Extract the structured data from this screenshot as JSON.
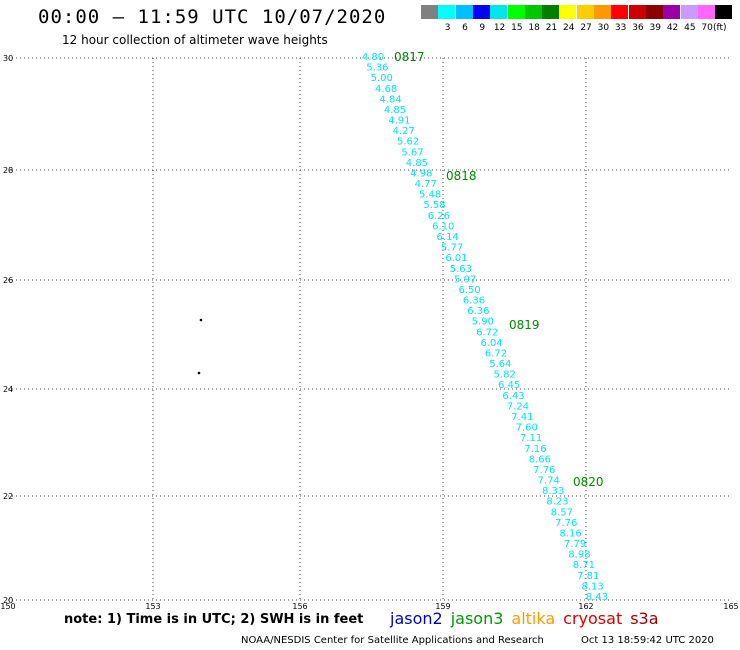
{
  "header": {
    "title": "00:00 – 11:59 UTC 10/07/2020",
    "subtitle": "12 hour collection of altimeter wave heights"
  },
  "scale": {
    "labels": [
      "3",
      "6",
      "9",
      "12",
      "15",
      "18",
      "21",
      "24",
      "27",
      "30",
      "33",
      "36",
      "39",
      "42",
      "45",
      "70"
    ],
    "colors": [
      "#808080",
      "#00ffff",
      "#00bfff",
      "#0000ff",
      "#00e5ee",
      "#00ff00",
      "#00c800",
      "#008000",
      "#ffff00",
      "#ffcc00",
      "#ff9900",
      "#ff0000",
      "#cc0000",
      "#8b0000",
      "#9900aa",
      "#cc99ff",
      "#ff66ff",
      "#000000"
    ],
    "unit": "(ft)"
  },
  "axes": {
    "lat_labels": [
      "30",
      "28",
      "26",
      "24",
      "22",
      "20"
    ],
    "lon_labels": [
      "150",
      "153",
      "156",
      "159",
      "162",
      "165"
    ]
  },
  "track": {
    "color": "#00e5ee",
    "observations": [
      "4.80",
      "5.36",
      "5.00",
      "4.68",
      "4.84",
      "4.85",
      "4.91",
      "4.27",
      "5.62",
      "5.67",
      "4.85",
      "4.98",
      "4.77",
      "5.48",
      "5.58",
      "6.26",
      "6.10",
      "6.14",
      "5.77",
      "6.01",
      "5.63",
      "5.97",
      "6.50",
      "6.36",
      "6.36",
      "5.90",
      "6.72",
      "6.04",
      "6.72",
      "5.64",
      "5.82",
      "6.45",
      "6.43",
      "7.24",
      "7.41",
      "7.60",
      "7.11",
      "7.16",
      "8.66",
      "7.76",
      "7.74",
      "8.33",
      "8.23",
      "8.57",
      "7.76",
      "8.16",
      "7.79",
      "8.98",
      "8.71",
      "7.81",
      "8.13",
      "8.43"
    ],
    "time_labels": [
      "0817",
      "0818",
      "0819",
      "0820"
    ],
    "time_color": "#008800"
  },
  "islands": [
    {
      "name": "dot-1"
    },
    {
      "name": "dot-2"
    }
  ],
  "footer": {
    "note": "note: 1) Time is in UTC; 2) SWH is in feet",
    "satellites": [
      {
        "name": "jason2",
        "color": "#0000cc"
      },
      {
        "name": "jason3",
        "color": "#009900"
      },
      {
        "name": "altika",
        "color": "#ff9900"
      },
      {
        "name": "cryosat",
        "color": "#dd0000"
      },
      {
        "name": "s3a",
        "color": "#990000"
      }
    ],
    "credit": "NOAA/NESDIS Center for Satellite Applications and Research",
    "timestamp": "Oct 13 18:59:42 UTC 2020"
  }
}
